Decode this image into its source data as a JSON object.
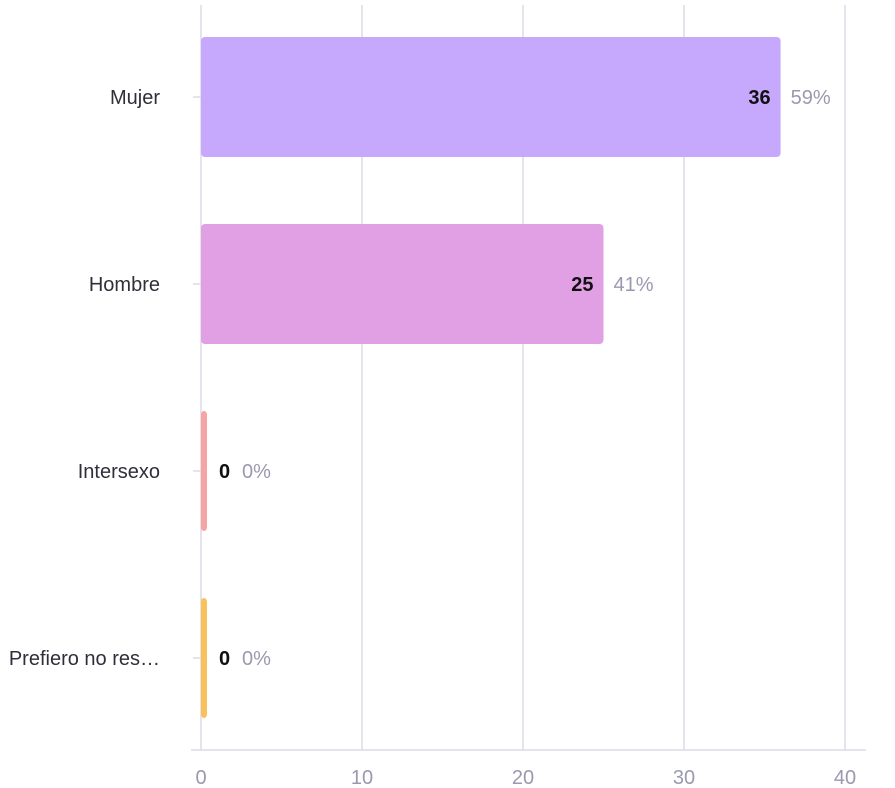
{
  "chart_data": {
    "type": "bar",
    "orientation": "horizontal",
    "categories": [
      "Mujer",
      "Hombre",
      "Intersexo",
      "Prefiero no res…"
    ],
    "values": [
      36,
      25,
      0,
      0
    ],
    "percent_labels": [
      "59%",
      "41%",
      "0%",
      "0%"
    ],
    "colors": [
      "#c6a8fd",
      "#e2a0e4",
      "#f5a3a3",
      "#f8c15c"
    ],
    "xlim": [
      0,
      40
    ],
    "xticks": [
      0,
      10,
      20,
      30,
      40
    ],
    "grid": true,
    "title": "",
    "xlabel": "",
    "ylabel": ""
  }
}
